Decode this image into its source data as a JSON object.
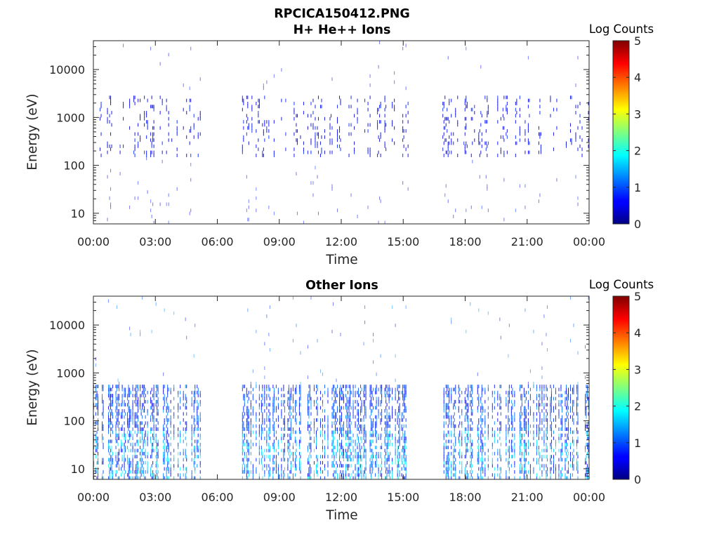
{
  "figure": {
    "title_line1": "RPCICA150412.PNG"
  },
  "chart_data": [
    {
      "type": "heatmap",
      "title": "H+ He++ Ions",
      "xlabel": "Time",
      "ylabel": "Energy (eV)",
      "y_scale": "log",
      "ylim": [
        6,
        40000
      ],
      "xlim_hours": [
        0,
        24
      ],
      "x_tick_labels": [
        "00:00",
        "03:00",
        "06:00",
        "09:00",
        "12:00",
        "15:00",
        "18:00",
        "21:00",
        "00:00"
      ],
      "y_ticks": [
        10,
        100,
        1000,
        10000
      ],
      "y_tick_labels": [
        "10",
        "100",
        "1000",
        "10000"
      ],
      "colorbar": {
        "label": "Log Counts",
        "range": [
          0,
          5
        ],
        "tick_labels": [
          "0",
          "1",
          "2",
          "3",
          "4",
          "5"
        ],
        "colormap": "jet"
      },
      "data_gaps_hours": [
        [
          5.3,
          7.1
        ],
        [
          15.3,
          16.9
        ]
      ],
      "dominant_energy_band_eV": [
        150,
        2500
      ],
      "dominant_log_counts": [
        0.3,
        1.2
      ]
    },
    {
      "type": "heatmap",
      "title": "Other Ions",
      "xlabel": "Time",
      "ylabel": "Energy (eV)",
      "y_scale": "log",
      "ylim": [
        6,
        40000
      ],
      "xlim_hours": [
        0,
        24
      ],
      "x_tick_labels": [
        "00:00",
        "03:00",
        "06:00",
        "09:00",
        "12:00",
        "15:00",
        "18:00",
        "21:00",
        "00:00"
      ],
      "y_ticks": [
        10,
        100,
        1000,
        10000
      ],
      "y_tick_labels": [
        "10",
        "100",
        "1000",
        "10000"
      ],
      "colorbar": {
        "label": "Log Counts",
        "range": [
          0,
          5
        ],
        "tick_labels": [
          "0",
          "1",
          "2",
          "3",
          "4",
          "5"
        ],
        "colormap": "jet"
      },
      "data_gaps_hours": [
        [
          5.3,
          7.1
        ],
        [
          15.3,
          16.9
        ]
      ],
      "dominant_energy_band_eV": [
        6,
        500
      ],
      "dominant_log_counts": [
        0.5,
        2.0
      ]
    }
  ]
}
